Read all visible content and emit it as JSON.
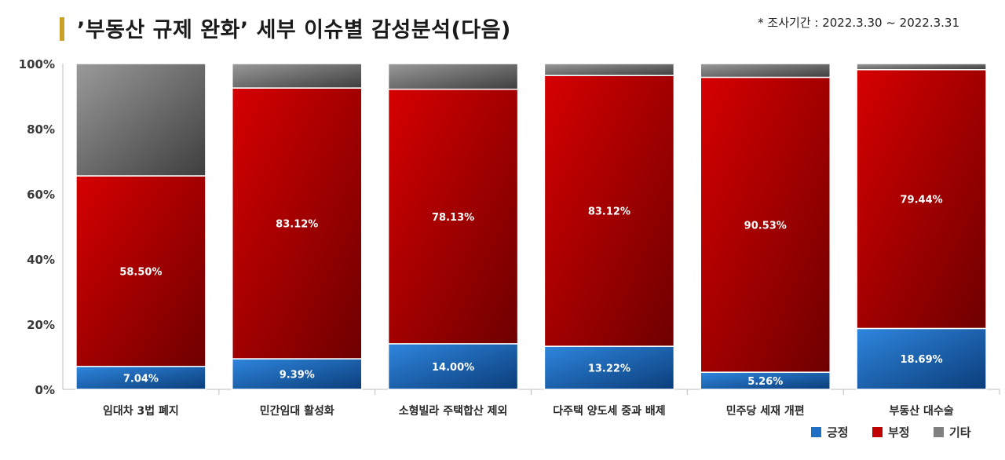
{
  "header": {
    "title": "’부동산 규제 완화’ 세부 이슈별 감성분석(다음)",
    "note": "* 조사기간 : 2022.3.30 ~ 2022.3.31"
  },
  "colors": {
    "positive": "#1f6fc4",
    "negative": "#c00000",
    "other": "#7f7f7f",
    "title_bar": "#c9a227"
  },
  "chart_data": {
    "type": "bar",
    "stacked": true,
    "percent": true,
    "categories": [
      "임대차 3법 폐지",
      "민간임대 활성화",
      "소형빌라 주택합산 제외",
      "다주택 양도세 중과 배제",
      "민주당 세재 개편",
      "부동산 대수술"
    ],
    "series": [
      {
        "name": "긍정",
        "values": [
          7.04,
          9.39,
          14.0,
          13.22,
          5.26,
          18.69
        ],
        "labels": [
          "7.04%",
          "9.39%",
          "14.00%",
          "13.22%",
          "5.26%",
          "18.69%"
        ]
      },
      {
        "name": "부정",
        "values": [
          58.5,
          83.12,
          78.13,
          83.12,
          90.53,
          79.44
        ],
        "labels": [
          "58.50%",
          "83.12%",
          "78.13%",
          "83.12%",
          "90.53%",
          "79.44%"
        ]
      },
      {
        "name": "기타",
        "values": [
          34.46,
          7.49,
          7.87,
          3.66,
          4.21,
          1.87
        ]
      }
    ],
    "yticks": [
      "0%",
      "20%",
      "40%",
      "60%",
      "80%",
      "100%"
    ],
    "ylim": [
      0,
      100
    ],
    "legend": "bottom-right",
    "grid": false
  }
}
